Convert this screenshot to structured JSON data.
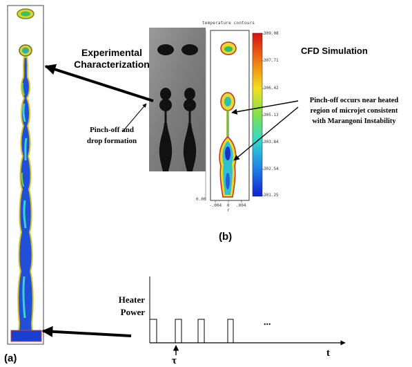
{
  "labels": {
    "experimental": "Experimental Characterization",
    "cfd": "CFD Simulation",
    "pinch_off_drop": [
      "Pinch-off and",
      "drop formation"
    ],
    "pinch_off_heated": [
      "Pinch-off occurs near heated",
      "region of microjet consistent",
      "with Marangoni Instability"
    ],
    "panel_a": "(a)",
    "panel_b": "(b)",
    "heater_power": [
      "Heater",
      "Power"
    ],
    "time_axis": "t",
    "tau": "τ",
    "continuation": "..."
  },
  "contour_plot": {
    "title": "temperature contours",
    "colorbar_ticks": [
      "309.08",
      "307.71",
      "306.42",
      "305.13",
      "303.84",
      "302.54",
      "301.25"
    ],
    "x_ticks": [
      "-.004",
      "0",
      ".004"
    ],
    "y_tick_bottom": "0.00",
    "x_label": "r"
  },
  "colors": {
    "jet_blue": "#1f3fd8",
    "jet_cyan": "#3fd0d8",
    "jet_green": "#7fd65a",
    "jet_yellow": "#f0e03a",
    "jet_red": "#d83020",
    "photo_bg": "#8a8a8a",
    "photo_drop": "#111111"
  }
}
